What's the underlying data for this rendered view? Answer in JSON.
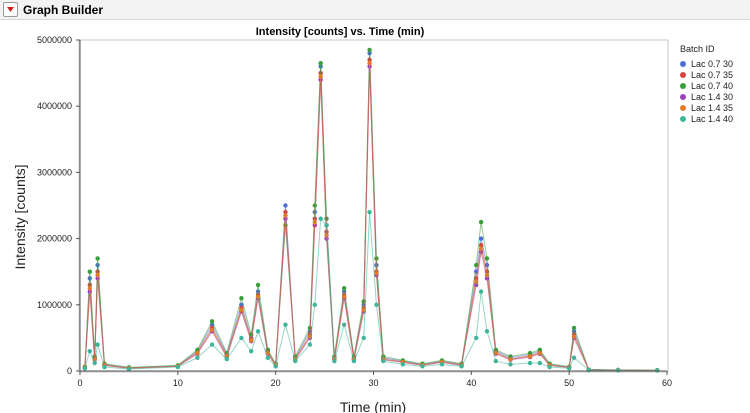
{
  "window": {
    "title": "Graph Builder"
  },
  "chart_data": {
    "type": "scatter",
    "title": "Intensity [counts] vs. Time (min)",
    "xlabel": "Time (min)",
    "ylabel": "Intensity [counts]",
    "xlim": [
      0,
      60
    ],
    "ylim": [
      0,
      5000000
    ],
    "x_ticks": [
      0,
      10,
      20,
      30,
      40,
      50,
      60
    ],
    "y_ticks": [
      0,
      1000000,
      2000000,
      3000000,
      4000000,
      5000000
    ],
    "grid": false,
    "legend": {
      "title": "Batch ID",
      "position": "right"
    },
    "series": [
      {
        "name": "Lac 0.7 30",
        "color": "#4f6fd6",
        "x": [
          0.5,
          1.0,
          1.5,
          1.8,
          2.5,
          5,
          10,
          12,
          13.5,
          15,
          16.5,
          17.5,
          18.2,
          19.2,
          20,
          21,
          22,
          23.5,
          24,
          24.6,
          25.2,
          26,
          27,
          28,
          29,
          29.6,
          30.3,
          31,
          33,
          35,
          37,
          39,
          40.5,
          41,
          41.6,
          42.5,
          44,
          46,
          47,
          48,
          50,
          50.5,
          52,
          55,
          59
        ],
        "y": [
          60000,
          1400000,
          200000,
          1600000,
          100000,
          50000,
          80000,
          300000,
          700000,
          250000,
          1000000,
          500000,
          1200000,
          300000,
          100000,
          2500000,
          200000,
          600000,
          2400000,
          4600000,
          2200000,
          200000,
          1200000,
          200000,
          1000000,
          4800000,
          1600000,
          200000,
          150000,
          100000,
          150000,
          100000,
          1500000,
          2000000,
          1600000,
          300000,
          200000,
          250000,
          300000,
          100000,
          60000,
          600000,
          20000,
          15000,
          10000
        ]
      },
      {
        "name": "Lac 0.7 35",
        "color": "#d64545",
        "x": [
          0.5,
          1.0,
          1.5,
          1.8,
          2.5,
          5,
          10,
          12,
          13.5,
          15,
          16.5,
          17.5,
          18.2,
          19.2,
          20,
          21,
          22,
          23.5,
          24,
          24.6,
          25.2,
          26,
          27,
          28,
          29,
          29.6,
          30.3,
          31,
          33,
          35,
          37,
          39,
          40.5,
          41,
          41.6,
          42.5,
          44,
          46,
          47,
          48,
          50,
          50.5,
          52,
          55,
          59
        ],
        "y": [
          55000,
          1300000,
          180000,
          1500000,
          90000,
          45000,
          75000,
          280000,
          650000,
          230000,
          950000,
          480000,
          1150000,
          280000,
          90000,
          2400000,
          180000,
          550000,
          2300000,
          4500000,
          2100000,
          180000,
          1150000,
          180000,
          950000,
          4700000,
          1500000,
          180000,
          140000,
          90000,
          140000,
          90000,
          1400000,
          1900000,
          1500000,
          280000,
          180000,
          230000,
          280000,
          90000,
          55000,
          550000,
          18000,
          14000,
          9000
        ]
      },
      {
        "name": "Lac 0.7 40",
        "color": "#3b9c3b",
        "x": [
          0.5,
          1.0,
          1.5,
          1.8,
          2.5,
          5,
          10,
          12,
          13.5,
          15,
          16.5,
          17.5,
          18.2,
          19.2,
          20,
          21,
          22,
          23.5,
          24,
          24.6,
          25.2,
          26,
          27,
          28,
          29,
          29.6,
          30.3,
          31,
          33,
          35,
          37,
          39,
          40.5,
          41,
          41.6,
          42.5,
          44,
          46,
          47,
          48,
          50,
          50.5,
          52,
          55,
          59
        ],
        "y": [
          65000,
          1500000,
          220000,
          1700000,
          110000,
          55000,
          85000,
          320000,
          750000,
          270000,
          1100000,
          550000,
          1300000,
          320000,
          110000,
          2200000,
          220000,
          650000,
          2500000,
          4650000,
          2300000,
          220000,
          1250000,
          220000,
          1050000,
          4850000,
          1700000,
          220000,
          160000,
          110000,
          160000,
          110000,
          1600000,
          2250000,
          1700000,
          320000,
          220000,
          270000,
          320000,
          110000,
          65000,
          650000,
          22000,
          16000,
          11000
        ]
      },
      {
        "name": "Lac 1.4 30",
        "color": "#9b3fbf",
        "x": [
          0.5,
          1.0,
          1.5,
          1.8,
          2.5,
          5,
          10,
          12,
          13.5,
          15,
          16.5,
          17.5,
          18.2,
          19.2,
          20,
          21,
          22,
          23.5,
          24,
          24.6,
          25.2,
          26,
          27,
          28,
          29,
          29.6,
          30.3,
          31,
          33,
          35,
          37,
          39,
          40.5,
          41,
          41.6,
          42.5,
          44,
          46,
          47,
          48,
          50,
          50.5,
          52,
          55,
          59
        ],
        "y": [
          50000,
          1200000,
          170000,
          1400000,
          85000,
          40000,
          70000,
          260000,
          600000,
          210000,
          900000,
          450000,
          1100000,
          260000,
          85000,
          2300000,
          170000,
          500000,
          2200000,
          4400000,
          2000000,
          170000,
          1100000,
          170000,
          900000,
          4600000,
          1450000,
          170000,
          130000,
          85000,
          130000,
          85000,
          1300000,
          1800000,
          1400000,
          260000,
          170000,
          210000,
          260000,
          85000,
          50000,
          500000,
          17000,
          13000,
          8000
        ]
      },
      {
        "name": "Lac 1.4 35",
        "color": "#e07b2a",
        "x": [
          0.5,
          1.0,
          1.5,
          1.8,
          2.5,
          5,
          10,
          12,
          13.5,
          15,
          16.5,
          17.5,
          18.2,
          19.2,
          20,
          21,
          22,
          23.5,
          24,
          24.6,
          25.2,
          26,
          27,
          28,
          29,
          29.6,
          30.3,
          31,
          33,
          35,
          37,
          39,
          40.5,
          41,
          41.6,
          42.5,
          44,
          46,
          47,
          48,
          50,
          50.5,
          52,
          55,
          59
        ],
        "y": [
          52000,
          1250000,
          175000,
          1450000,
          88000,
          42000,
          72000,
          270000,
          620000,
          220000,
          920000,
          460000,
          1120000,
          270000,
          88000,
          2350000,
          175000,
          520000,
          2250000,
          4450000,
          2050000,
          175000,
          1120000,
          175000,
          920000,
          4650000,
          1480000,
          175000,
          135000,
          88000,
          135000,
          88000,
          1350000,
          1850000,
          1450000,
          270000,
          175000,
          220000,
          270000,
          88000,
          52000,
          520000,
          17500,
          13500,
          8500
        ]
      },
      {
        "name": "Lac 1.4 40",
        "color": "#3fb59a",
        "x": [
          0.5,
          1.0,
          1.5,
          1.8,
          2.5,
          5,
          10,
          12,
          13.5,
          15,
          16.5,
          17.5,
          18.2,
          19.2,
          20,
          21,
          22,
          23.5,
          24,
          24.6,
          25.2,
          26,
          27,
          28,
          29,
          29.6,
          30.3,
          31,
          33,
          35,
          37,
          39,
          40.5,
          41,
          41.6,
          42.5,
          44,
          46,
          47,
          48,
          50,
          50.5,
          52,
          55,
          59
        ],
        "y": [
          40000,
          300000,
          120000,
          400000,
          60000,
          30000,
          60000,
          200000,
          400000,
          180000,
          500000,
          300000,
          600000,
          200000,
          70000,
          700000,
          150000,
          400000,
          1000000,
          2300000,
          2200000,
          150000,
          700000,
          150000,
          500000,
          2400000,
          1000000,
          150000,
          100000,
          70000,
          100000,
          70000,
          500000,
          1200000,
          600000,
          150000,
          100000,
          120000,
          120000,
          60000,
          40000,
          200000,
          15000,
          10000,
          8000
        ]
      }
    ]
  }
}
